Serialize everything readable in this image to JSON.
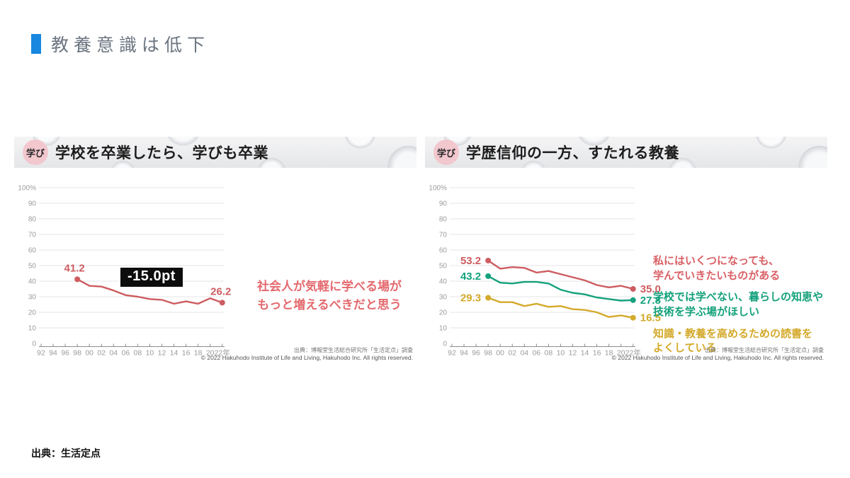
{
  "page": {
    "title": "教養意識は低下",
    "accent_blue": "#1787e0",
    "source_note": "出典：生活定点"
  },
  "panels": [
    {
      "badge": "学び",
      "title": "学校を卒業したら、学びも卒業",
      "annotation": "-15.0pt",
      "side_text": {
        "line1": "社会人が気軽に学べる場が",
        "line2": "もっと増えるべきだと思う",
        "color": "#e4696e"
      },
      "source": {
        "jp": "出典：博報堂生活総合研究所「生活定点」調査",
        "en": "© 2022 Hakuhodo Institute of Life and Living, Hakuhodo Inc. All rights reserved."
      }
    },
    {
      "badge": "学び",
      "title": "学歴信仰の一方、すたれる教養",
      "legend": [
        {
          "line1": "私にはいくつになっても、",
          "line2": "学んでいきたいものがある",
          "color": "#d96065"
        },
        {
          "line1": "学校では学べない、暮らしの知恵や",
          "line2": "技術を学ぶ場がほしい",
          "color": "#14a17c"
        },
        {
          "line1": "知識・教養を高めるための読書を",
          "line2": "よくしている",
          "color": "#d3aa2c"
        }
      ],
      "source": {
        "jp": "出典：博報堂生活総合研究所「生活定点」調査",
        "en": "© 2022 Hakuhodo Institute of Life and Living, Hakuhodo Inc. All rights reserved."
      }
    }
  ],
  "chart_data": [
    {
      "type": "line",
      "title": "学校を卒業したら、学びも卒業",
      "x_ticks": [
        "92",
        "94",
        "96",
        "98",
        "00",
        "02",
        "04",
        "06",
        "08",
        "10",
        "12",
        "14",
        "16",
        "18",
        "20",
        "22年"
      ],
      "x": [
        "98",
        "00",
        "02",
        "04",
        "06",
        "08",
        "10",
        "12",
        "14",
        "16",
        "18",
        "20",
        "22"
      ],
      "ylim": [
        0,
        100
      ],
      "y_top_label": "100%",
      "grid": true,
      "annotation": "-15.0pt",
      "series": [
        {
          "name": "社会人が気軽に学べる場がもっと増えるべきだと思う",
          "color": "#cd5c60",
          "values": [
            41.2,
            37,
            36.5,
            34,
            31,
            30,
            28.5,
            28,
            25.5,
            27,
            25.5,
            29,
            26.2
          ],
          "start_label": "41.2",
          "end_label": "26.2"
        }
      ]
    },
    {
      "type": "line",
      "title": "学歴信仰の一方、すたれる教養",
      "x_ticks": [
        "92",
        "94",
        "96",
        "98",
        "00",
        "02",
        "04",
        "06",
        "08",
        "10",
        "12",
        "14",
        "16",
        "18",
        "20",
        "22年"
      ],
      "x": [
        "98",
        "00",
        "02",
        "04",
        "06",
        "08",
        "10",
        "12",
        "14",
        "16",
        "18",
        "20",
        "22"
      ],
      "ylim": [
        0,
        100
      ],
      "y_top_label": "100%",
      "grid": true,
      "series": [
        {
          "name": "私にはいくつになっても、学んでいきたいものがある",
          "color": "#cd5c60",
          "values": [
            53.2,
            48,
            49,
            48.5,
            45.5,
            46.5,
            44.5,
            42.5,
            40.5,
            37.5,
            36,
            37,
            35.0
          ],
          "start_label": "53.2",
          "end_label": "35.0"
        },
        {
          "name": "学校では学べない、暮らしの知恵や技術を学ぶ場がほしい",
          "color": "#14a17c",
          "values": [
            43.2,
            39,
            38.5,
            39.5,
            39.5,
            38.5,
            34.5,
            32.5,
            31.5,
            29.5,
            28.5,
            27.5,
            27.8
          ],
          "start_label": "43.2",
          "end_label": "27.8"
        },
        {
          "name": "知識・教養を高めるための読書をよくしている",
          "color": "#d3aa2c",
          "values": [
            29.3,
            26.5,
            26.5,
            24,
            25.5,
            23.5,
            24,
            22,
            21.5,
            20,
            17,
            18,
            16.5
          ],
          "start_label": "29.3",
          "end_label": "16.5"
        }
      ]
    }
  ]
}
